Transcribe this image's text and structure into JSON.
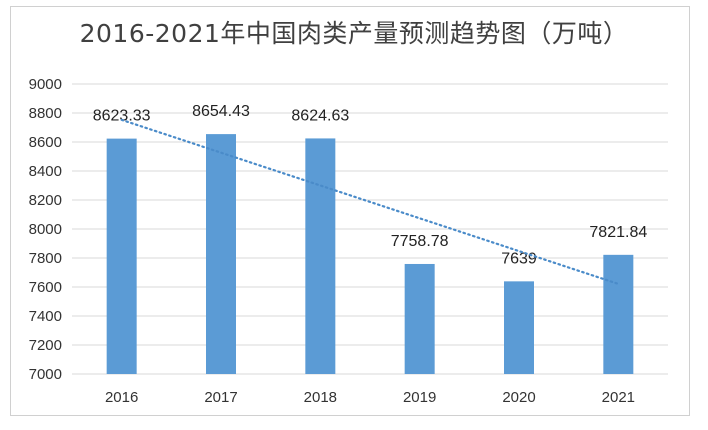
{
  "chart_data": {
    "type": "bar",
    "title": "2016-2021年中国肉类产量预测趋势图（万吨）",
    "categories": [
      "2016",
      "2017",
      "2018",
      "2019",
      "2020",
      "2021"
    ],
    "values": [
      8623.33,
      8654.43,
      8624.63,
      7758.78,
      7639,
      7821.84
    ],
    "data_labels": [
      "8623.33",
      "8654.43",
      "8624.63",
      "7758.78",
      "7639",
      "7821.84"
    ],
    "ylim": [
      7000,
      9000
    ],
    "yticks": [
      "7000",
      "7200",
      "7400",
      "7600",
      "7800",
      "8000",
      "8200",
      "8400",
      "8600",
      "8800",
      "9000"
    ],
    "grid": true,
    "trendline": {
      "type": "linear",
      "style": "dotted"
    },
    "colors": {
      "bar": "#5b9bd5",
      "trend": "#4a8bc9",
      "grid": "#d9d9d9",
      "text": "#404040"
    }
  }
}
